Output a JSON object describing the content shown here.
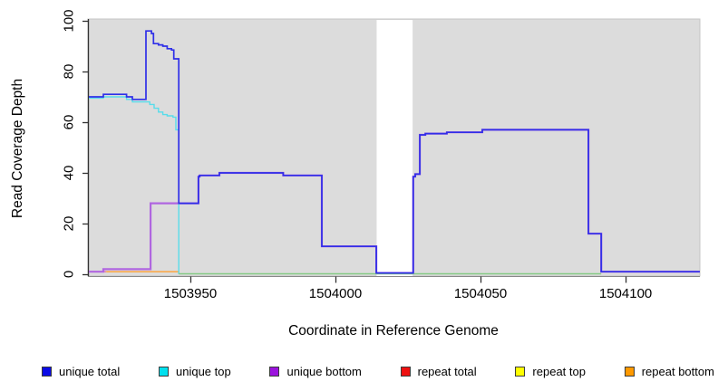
{
  "chart_data": {
    "type": "line",
    "subtype": "step-coverage",
    "title": "",
    "xlabel": "Coordinate in Reference Genome",
    "ylabel": "Read Coverage Depth",
    "x_ticks": [
      1503950,
      1504000,
      1504050,
      1504100
    ],
    "y_ticks": [
      0,
      20,
      40,
      60,
      80,
      100
    ],
    "xlim": [
      1503914.7,
      1504125.6
    ],
    "ylim": [
      0,
      100
    ],
    "grid": false,
    "panel_bg": "#dcdcdc",
    "masked_region": {
      "from": 1504014.2,
      "to": 1504026.6,
      "color": "#ffffff"
    },
    "zero_overlap_line": {
      "from": 1503946,
      "to": 1504091.6,
      "value": 0,
      "color": "#85ca85",
      "note": "overlapping zero-coverage strand lines appear green"
    },
    "legend_position": "bottom",
    "draw_order": [
      "repeat total",
      "repeat bottom",
      "unique bottom",
      "unique top",
      "__zero_overlap__",
      "unique total"
    ],
    "series": [
      {
        "name": "unique total",
        "legend_color": "#0b0be6",
        "line_color": "#2f2fe8",
        "width": 1.7,
        "points": [
          [
            1503915,
            70
          ],
          [
            1503920,
            71
          ],
          [
            1503928,
            70
          ],
          [
            1503930,
            69
          ],
          [
            1503934.7,
            96
          ],
          [
            1503936.6,
            95
          ],
          [
            1503937.3,
            91
          ],
          [
            1503939,
            90.5
          ],
          [
            1503940.5,
            90
          ],
          [
            1503942,
            89
          ],
          [
            1503943.5,
            88.5
          ],
          [
            1503944.3,
            85
          ],
          [
            1503946,
            28
          ],
          [
            1503952.8,
            38.5
          ],
          [
            1503953.2,
            39
          ],
          [
            1503960,
            40
          ],
          [
            1503982,
            39
          ],
          [
            1503995.3,
            11
          ],
          [
            1504014.1,
            0.5
          ],
          [
            1504026.8,
            38.5
          ],
          [
            1504027.5,
            39.5
          ],
          [
            1504029.1,
            55
          ],
          [
            1504031,
            55.5
          ],
          [
            1504038.4,
            56
          ],
          [
            1504050.6,
            57
          ],
          [
            1504087.2,
            16
          ],
          [
            1504091.6,
            1
          ],
          [
            1504125.6,
            1
          ]
        ]
      },
      {
        "name": "unique top",
        "legend_color": "#00e0ee",
        "line_color": "#58dcea",
        "width": 1.4,
        "points": [
          [
            1503915,
            69.5
          ],
          [
            1503920,
            70
          ],
          [
            1503928,
            69
          ],
          [
            1503930,
            68
          ],
          [
            1503936,
            67
          ],
          [
            1503937.5,
            65.5
          ],
          [
            1503939,
            64
          ],
          [
            1503940.5,
            63
          ],
          [
            1503942,
            62.5
          ],
          [
            1503944,
            62
          ],
          [
            1503945,
            57
          ],
          [
            1503946,
            0
          ]
        ]
      },
      {
        "name": "unique bottom",
        "legend_color": "#9b13dd",
        "line_color": "#b066e0",
        "width": 2.2,
        "points": [
          [
            1503915,
            1
          ],
          [
            1503920,
            2
          ],
          [
            1503936.3,
            28
          ],
          [
            1503946,
            28
          ],
          [
            1503952.8,
            38.5
          ],
          [
            1503953.2,
            39
          ],
          [
            1503960,
            40
          ],
          [
            1503982,
            39
          ],
          [
            1503995.3,
            11
          ],
          [
            1504014.1,
            0.5
          ],
          [
            1504026.8,
            38.5
          ],
          [
            1504027.5,
            39.5
          ],
          [
            1504029.1,
            55
          ],
          [
            1504031,
            55.5
          ],
          [
            1504038.4,
            56
          ],
          [
            1504050.6,
            57
          ],
          [
            1504087.2,
            16
          ],
          [
            1504091.6,
            1
          ],
          [
            1504125.6,
            1
          ]
        ]
      },
      {
        "name": "repeat total",
        "legend_color": "#ee1111",
        "line_color": "#e8739a",
        "width": 1.4,
        "points": [
          [
            1503915,
            1
          ],
          [
            1503921,
            1
          ]
        ]
      },
      {
        "name": "repeat top",
        "legend_color": "#ffff00",
        "line_color": "#ffff00",
        "width": 1.4,
        "draw": false,
        "points": [
          [
            1503915,
            0
          ],
          [
            1504125.6,
            0
          ]
        ]
      },
      {
        "name": "repeat bottom",
        "legend_color": "#ff9900",
        "line_color": "#ffa033",
        "width": 1.4,
        "points": [
          [
            1503921,
            1
          ],
          [
            1503946,
            1
          ],
          [
            1503946,
            0
          ]
        ]
      }
    ],
    "axis": {
      "y_axis_color": "#333333",
      "x_axis_color": "#888888",
      "tick_color": "#333333"
    }
  }
}
